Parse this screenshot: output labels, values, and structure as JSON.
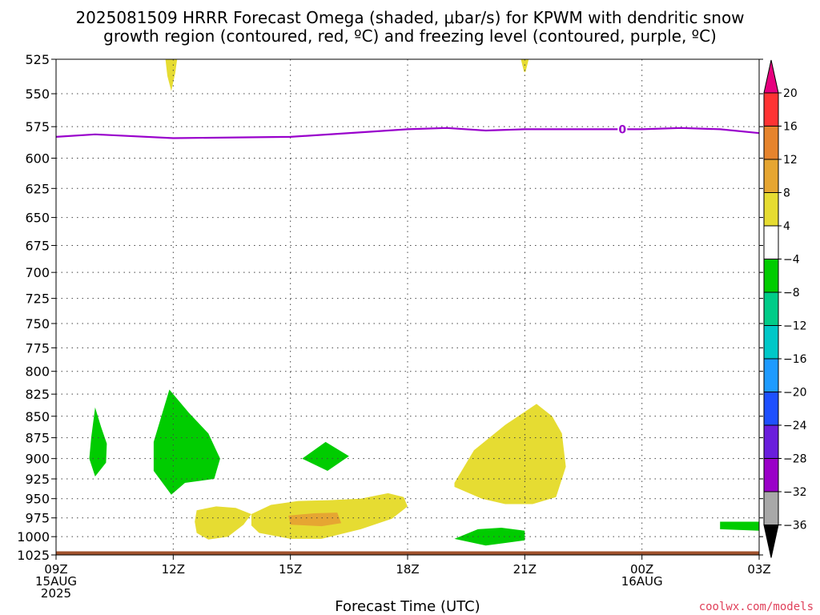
{
  "chart_data": {
    "type": "heatmap",
    "title_lines": [
      "2025081509 HRRR Forecast Omega (shaded, μbar/s) for KPWM with dendritic snow",
      "growth region (contoured, red, ºC) and freezing level (contoured, purple, ºC)"
    ],
    "xlabel": "Forecast Time (UTC)",
    "ylabel": "",
    "x_hours": [
      0,
      3,
      6,
      9,
      12,
      15,
      18
    ],
    "x_ticks": [
      {
        "hour": 0,
        "lines": [
          "09Z",
          "15AUG",
          "2025"
        ]
      },
      {
        "hour": 3,
        "lines": [
          "12Z"
        ]
      },
      {
        "hour": 6,
        "lines": [
          "15Z"
        ]
      },
      {
        "hour": 9,
        "lines": [
          "18Z"
        ]
      },
      {
        "hour": 12,
        "lines": [
          "21Z"
        ]
      },
      {
        "hour": 15,
        "lines": [
          "00Z",
          "16AUG"
        ]
      },
      {
        "hour": 18,
        "lines": [
          "03Z"
        ]
      }
    ],
    "xlim": [
      0,
      18
    ],
    "y_levels_hpa": [
      "525",
      "550",
      "575",
      "600",
      "625",
      "650",
      "675",
      "700",
      "725",
      "750",
      "775",
      "800",
      "825",
      "850",
      "875",
      "900",
      "925",
      "950",
      "975",
      "1000",
      "1025"
    ],
    "ylim": [
      525,
      1025
    ],
    "y_scale": "log-pressure (reversed)",
    "grid": true,
    "freezing_level": {
      "label": "0",
      "color": "#9900cc",
      "points": [
        [
          0,
          583
        ],
        [
          1,
          581
        ],
        [
          3,
          584
        ],
        [
          6,
          583
        ],
        [
          8,
          579
        ],
        [
          9,
          577
        ],
        [
          10,
          576
        ],
        [
          11,
          578
        ],
        [
          12,
          577
        ],
        [
          15,
          577
        ],
        [
          16,
          576
        ],
        [
          17,
          577
        ],
        [
          18,
          580
        ]
      ]
    },
    "omega_regions": [
      {
        "category": "4 to 8",
        "color": "#e6dc32",
        "points": [
          [
            2.8,
            525
          ],
          [
            3.1,
            525
          ],
          [
            3.05,
            535
          ],
          [
            2.95,
            548
          ],
          [
            2.85,
            537
          ]
        ]
      },
      {
        "category": "4 to 8",
        "color": "#e6dc32",
        "points": [
          [
            11.9,
            525
          ],
          [
            12.1,
            525
          ],
          [
            12.02,
            534
          ],
          [
            11.98,
            534
          ]
        ]
      },
      {
        "category": "4 to 8",
        "color": "#e6dc32",
        "points": [
          [
            3.6,
            965
          ],
          [
            4.1,
            960
          ],
          [
            4.6,
            962
          ],
          [
            5.0,
            970
          ],
          [
            4.8,
            984
          ],
          [
            4.4,
            1000
          ],
          [
            3.9,
            1004
          ],
          [
            3.6,
            995
          ],
          [
            3.55,
            980
          ]
        ]
      },
      {
        "category": "4 to 8",
        "color": "#e6dc32",
        "points": [
          [
            5.0,
            970
          ],
          [
            5.5,
            958
          ],
          [
            6.2,
            953
          ],
          [
            7.0,
            952
          ],
          [
            7.8,
            950
          ],
          [
            8.5,
            943
          ],
          [
            8.9,
            948
          ],
          [
            9.0,
            960
          ],
          [
            8.6,
            976
          ],
          [
            7.8,
            990
          ],
          [
            6.8,
            1003
          ],
          [
            6.0,
            1003
          ],
          [
            5.2,
            995
          ],
          [
            5.0,
            985
          ]
        ]
      },
      {
        "category": "8 to 12",
        "color": "#e6a632",
        "points": [
          [
            5.95,
            972
          ],
          [
            6.6,
            969
          ],
          [
            7.2,
            968
          ],
          [
            7.3,
            982
          ],
          [
            6.8,
            986
          ],
          [
            6.0,
            984
          ]
        ]
      },
      {
        "category": "4 to 8",
        "color": "#e6dc32",
        "points": [
          [
            10.2,
            930
          ],
          [
            10.7,
            890
          ],
          [
            11.5,
            860
          ],
          [
            12.3,
            836
          ],
          [
            12.7,
            850
          ],
          [
            12.95,
            870
          ],
          [
            13.05,
            910
          ],
          [
            12.8,
            948
          ],
          [
            12.2,
            957
          ],
          [
            11.5,
            957
          ],
          [
            10.9,
            950
          ],
          [
            10.2,
            935
          ]
        ]
      },
      {
        "category": "-8 to -4",
        "color": "#00cc00",
        "points": [
          [
            0.9,
            875
          ],
          [
            1.0,
            840
          ],
          [
            1.15,
            862
          ],
          [
            1.3,
            882
          ],
          [
            1.28,
            905
          ],
          [
            1.0,
            922
          ],
          [
            0.85,
            900
          ]
        ]
      },
      {
        "category": "-8 to -4",
        "color": "#00cc00",
        "points": [
          [
            2.5,
            880
          ],
          [
            2.9,
            820
          ],
          [
            3.4,
            846
          ],
          [
            3.9,
            870
          ],
          [
            4.2,
            900
          ],
          [
            4.05,
            925
          ],
          [
            3.3,
            930
          ],
          [
            2.95,
            945
          ],
          [
            2.5,
            915
          ]
        ]
      },
      {
        "category": "-8 to -4",
        "color": "#00cc00",
        "points": [
          [
            6.3,
            900
          ],
          [
            6.9,
            880
          ],
          [
            7.5,
            897
          ],
          [
            6.95,
            915
          ]
        ]
      },
      {
        "category": "-8 to -4",
        "color": "#00cc00",
        "points": [
          [
            10.2,
            1003
          ],
          [
            10.8,
            990
          ],
          [
            11.4,
            988
          ],
          [
            12.0,
            992
          ],
          [
            12.0,
            1005
          ],
          [
            11.0,
            1012
          ]
        ]
      },
      {
        "category": "-8 to -4",
        "color": "#00cc00",
        "points": [
          [
            17.0,
            980
          ],
          [
            18.0,
            980
          ],
          [
            18.0,
            992
          ],
          [
            17.0,
            990
          ]
        ]
      }
    ],
    "surface_band": {
      "color": "#a0522d",
      "from_hpa": 1020,
      "to_hpa": 1025
    },
    "colorbar": {
      "labels": [
        "20",
        "16",
        "12",
        "8",
        "4",
        "−4",
        "−8",
        "−12",
        "−16",
        "−20",
        "−24",
        "−28",
        "−32",
        "−36"
      ],
      "top_color": "#e6007e",
      "bottom_color": "#000000",
      "segment_colors": [
        "#ff3333",
        "#e6842d",
        "#e6a632",
        "#e6dc32",
        "#ffffff",
        "#00cc00",
        "#00cc88",
        "#00c8c8",
        "#1e9bff",
        "#1e50ff",
        "#6a1edc",
        "#9a00c8",
        "#a8a8a8"
      ]
    }
  },
  "footer": {
    "credit": "coolwx.com/models"
  }
}
